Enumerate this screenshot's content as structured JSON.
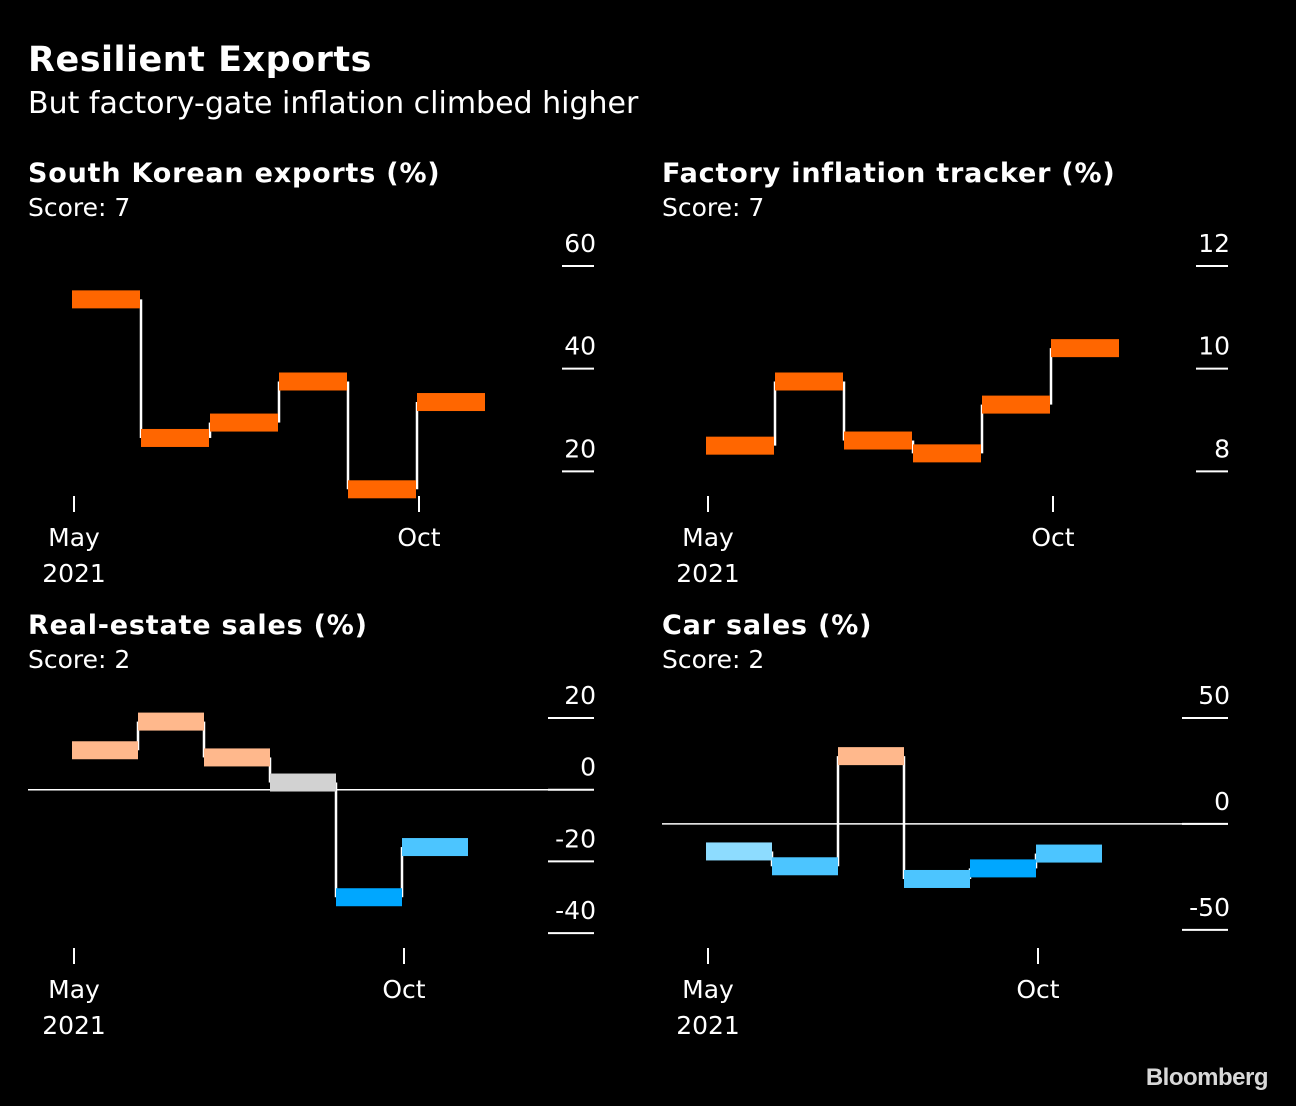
{
  "header": {
    "title": "Resilient Exports",
    "subtitle": "But factory-gate inflation climbed higher"
  },
  "source": "Bloomberg",
  "chart_data": [
    {
      "type": "line",
      "step": true,
      "title": "South Korean exports (%)",
      "subtitle": "Score: 7",
      "x": [
        "2021-05",
        "2021-06",
        "2021-07",
        "2021-08",
        "2021-09",
        "2021-10"
      ],
      "values": [
        53.5,
        26.5,
        29.5,
        37.5,
        16.5,
        33.5
      ],
      "colors": [
        "#ff6600",
        "#ff6600",
        "#ff6600",
        "#ff6600",
        "#ff6600",
        "#ff6600"
      ],
      "ylim": [
        15,
        60
      ],
      "yticks": [
        60,
        40,
        20
      ],
      "xticks": [
        {
          "x": "2021-05",
          "label": "May",
          "sub": "2021"
        },
        {
          "x": "2021-10",
          "label": "Oct",
          "sub": ""
        }
      ],
      "zero_line": false
    },
    {
      "type": "line",
      "step": true,
      "title": "Factory inflation tracker (%)",
      "subtitle": "Score: 7",
      "x": [
        "2021-05",
        "2021-06",
        "2021-07",
        "2021-08",
        "2021-09",
        "2021-10"
      ],
      "values": [
        8.5,
        9.75,
        8.6,
        8.35,
        9.3,
        10.4
      ],
      "colors": [
        "#ff6600",
        "#ff6600",
        "#ff6600",
        "#ff6600",
        "#ff6600",
        "#ff6600"
      ],
      "ylim": [
        7.5,
        12
      ],
      "yticks": [
        12,
        10,
        8
      ],
      "xticks": [
        {
          "x": "2021-05",
          "label": "May",
          "sub": "2021"
        },
        {
          "x": "2021-10",
          "label": "Oct",
          "sub": ""
        }
      ],
      "zero_line": false
    },
    {
      "type": "line",
      "step": true,
      "title": "Real-estate sales (%)",
      "subtitle": "Score: 2",
      "x": [
        "2021-05",
        "2021-06",
        "2021-07",
        "2021-08",
        "2021-09",
        "2021-10"
      ],
      "values": [
        11,
        19,
        9,
        2,
        -30,
        -16
      ],
      "colors": [
        "#ffb88c",
        "#ffb88c",
        "#ffb88c",
        "#d2d2d2",
        "#00a7ff",
        "#4cc5ff"
      ],
      "ylim": [
        -45,
        20
      ],
      "yticks": [
        20,
        0,
        -20,
        -40
      ],
      "xticks": [
        {
          "x": "2021-05",
          "label": "May",
          "sub": "2021"
        },
        {
          "x": "2021-10",
          "label": "Oct",
          "sub": ""
        }
      ],
      "zero_line": true
    },
    {
      "type": "line",
      "step": true,
      "title": "Car sales (%)",
      "subtitle": "Score: 2",
      "x": [
        "2021-05",
        "2021-06",
        "2021-07",
        "2021-08",
        "2021-09",
        "2021-10"
      ],
      "values": [
        -13,
        -20,
        32,
        -26,
        -21,
        -14
      ],
      "colors": [
        "#8ddcff",
        "#4cc5ff",
        "#ffb88c",
        "#4cc5ff",
        "#00a7ff",
        "#4cc5ff"
      ],
      "ylim": [
        -60,
        50
      ],
      "yticks": [
        50,
        0,
        -50
      ],
      "xticks": [
        {
          "x": "2021-05",
          "label": "May",
          "sub": "2021"
        },
        {
          "x": "2021-10",
          "label": "Oct",
          "sub": ""
        }
      ],
      "zero_line": true
    }
  ]
}
